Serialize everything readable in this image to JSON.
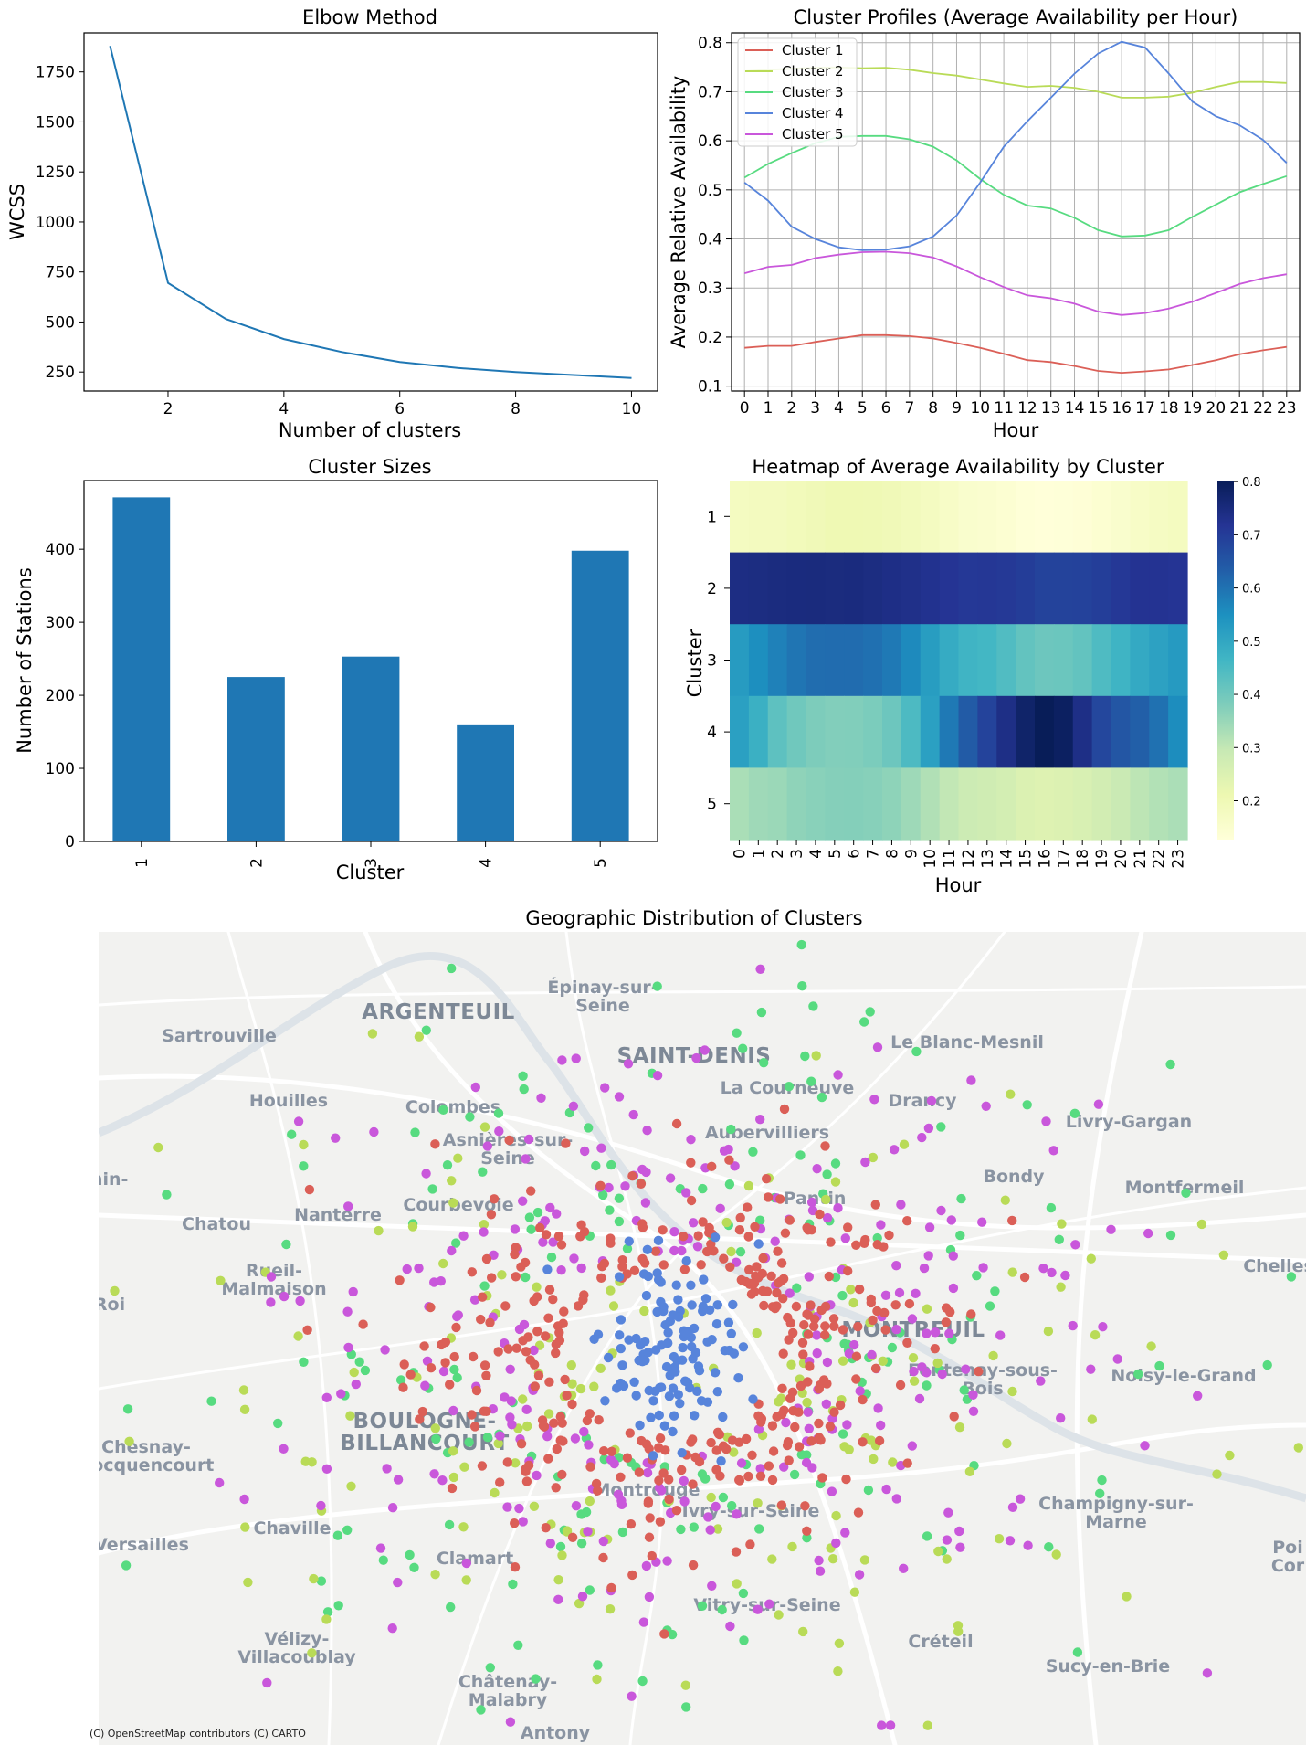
{
  "colors": {
    "elbow_line": "#1f77b4",
    "bar": "#1f77b4",
    "cluster_1": "#db5f57",
    "cluster_2": "#b9db57",
    "cluster_3": "#57db80",
    "cluster_4": "#5784db",
    "cluster_5": "#c957db",
    "map_background": "#f2f2f0"
  },
  "chart_data": [
    {
      "type": "line",
      "title": "Elbow Method",
      "xlabel": "Number of clusters",
      "ylabel": "WCSS",
      "x": [
        1,
        2,
        3,
        4,
        5,
        6,
        7,
        8,
        9,
        10
      ],
      "values": [
        1880,
        695,
        515,
        415,
        350,
        300,
        270,
        250,
        235,
        220
      ],
      "xlim": [
        0.55,
        10.45
      ],
      "ylim": [
        155,
        1945
      ],
      "xticks": [
        "2",
        "4",
        "6",
        "8",
        "10"
      ],
      "yticks": [
        "250",
        "500",
        "750",
        "1000",
        "1250",
        "1500",
        "1750"
      ],
      "grid": false
    },
    {
      "type": "line",
      "title": "Cluster Profiles (Average Availability per Hour)",
      "xlabel": "Hour",
      "ylabel": "Average Relative Availability",
      "categories": [
        "0",
        "1",
        "2",
        "3",
        "4",
        "5",
        "6",
        "7",
        "8",
        "9",
        "10",
        "11",
        "12",
        "13",
        "14",
        "15",
        "16",
        "17",
        "18",
        "19",
        "20",
        "21",
        "22",
        "23"
      ],
      "ylim": [
        0.09,
        0.82
      ],
      "yticks": [
        "0.1",
        "0.2",
        "0.3",
        "0.4",
        "0.5",
        "0.6",
        "0.7",
        "0.8"
      ],
      "grid": true,
      "legend_position": "top-left",
      "series": [
        {
          "name": "Cluster 1",
          "values": [
            0.178,
            0.182,
            0.182,
            0.19,
            0.197,
            0.204,
            0.204,
            0.202,
            0.197,
            0.188,
            0.178,
            0.166,
            0.153,
            0.149,
            0.141,
            0.131,
            0.127,
            0.13,
            0.134,
            0.143,
            0.153,
            0.165,
            0.173,
            0.18
          ]
        },
        {
          "name": "Cluster 2",
          "values": [
            0.742,
            0.745,
            0.747,
            0.749,
            0.75,
            0.748,
            0.749,
            0.745,
            0.738,
            0.733,
            0.725,
            0.717,
            0.71,
            0.712,
            0.708,
            0.7,
            0.688,
            0.688,
            0.69,
            0.698,
            0.71,
            0.72,
            0.72,
            0.718
          ]
        },
        {
          "name": "Cluster 3",
          "values": [
            0.525,
            0.553,
            0.575,
            0.595,
            0.608,
            0.61,
            0.61,
            0.603,
            0.588,
            0.56,
            0.522,
            0.49,
            0.468,
            0.462,
            0.443,
            0.418,
            0.405,
            0.407,
            0.418,
            0.445,
            0.47,
            0.495,
            0.512,
            0.528
          ]
        },
        {
          "name": "Cluster 4",
          "values": [
            0.515,
            0.478,
            0.425,
            0.4,
            0.383,
            0.377,
            0.378,
            0.385,
            0.405,
            0.448,
            0.515,
            0.588,
            0.64,
            0.688,
            0.737,
            0.778,
            0.802,
            0.79,
            0.737,
            0.68,
            0.65,
            0.632,
            0.602,
            0.555
          ]
        },
        {
          "name": "Cluster 5",
          "values": [
            0.33,
            0.343,
            0.347,
            0.361,
            0.368,
            0.373,
            0.374,
            0.371,
            0.362,
            0.344,
            0.322,
            0.302,
            0.285,
            0.279,
            0.268,
            0.252,
            0.245,
            0.249,
            0.258,
            0.272,
            0.29,
            0.308,
            0.32,
            0.328
          ]
        }
      ]
    },
    {
      "type": "bar",
      "title": "Cluster Sizes",
      "xlabel": "Cluster",
      "ylabel": "Number of Stations",
      "categories": [
        "1",
        "2",
        "3",
        "4",
        "5"
      ],
      "values": [
        471,
        225,
        253,
        159,
        398
      ],
      "ylim": [
        0,
        494
      ],
      "yticks": [
        "0",
        "100",
        "200",
        "300",
        "400"
      ],
      "grid": false
    },
    {
      "type": "heatmap",
      "title": "Heatmap of Average Availability by Cluster",
      "xlabel": "Hour",
      "ylabel": "Cluster",
      "x_categories": [
        "0",
        "1",
        "2",
        "3",
        "4",
        "5",
        "6",
        "7",
        "8",
        "9",
        "10",
        "11",
        "12",
        "13",
        "14",
        "15",
        "16",
        "17",
        "18",
        "19",
        "20",
        "21",
        "22",
        "23"
      ],
      "y_categories": [
        "1",
        "2",
        "3",
        "4",
        "5"
      ],
      "colormap": "YlGnBu",
      "colorbar_range": [
        0.127,
        0.802
      ],
      "colorbar_ticks": [
        "0.2",
        "0.3",
        "0.4",
        "0.5",
        "0.6",
        "0.7",
        "0.8"
      ],
      "values_source": "same hourly averages as Cluster Profiles series 1-5"
    },
    {
      "type": "scatter",
      "title": "Geographic Distribution of Clusters",
      "basemap": "CARTO light (Paris area)",
      "attribution": "(C) OpenStreetMap contributors (C) CARTO",
      "series_names_by_color": [
        "Cluster 1",
        "Cluster 2",
        "Cluster 3",
        "Cluster 4",
        "Cluster 5"
      ],
      "place_labels": [
        "ARGENTEUIL",
        "SAINT-DENIS",
        "MONTREUIL",
        "BOULOGNE-BILLANCOURT",
        "Épinay-sur-Seine",
        "Sartrouville",
        "Le Blanc-Mesnil",
        "La Courneuve",
        "Houilles",
        "Colombes",
        "Drancy",
        "Livry-Gargan",
        "Asnières-sur-Seine",
        "Aubervilliers",
        "Bondy",
        "Montfermeil",
        "Chatou",
        "Nanterre",
        "Courbevoie",
        "Pantin",
        "Rueil-Malmaison",
        "Chelles",
        "Fontenay-sous-Bois",
        "Noisy-le-Grand",
        "Chesnay-Rocquencourt",
        "Montrouge",
        "Ivry-sur-Seine",
        "Champigny-sur-Marne",
        "Chaville",
        "Versailles",
        "Clamart",
        "Vitry-sur-Seine",
        "Vélizy-Villacoublay",
        "Créteil",
        "Sucy-en-Brie",
        "Châtenay-Malabry",
        "Antony",
        "Roi",
        "ain-",
        "Poi Cor"
      ]
    }
  ]
}
